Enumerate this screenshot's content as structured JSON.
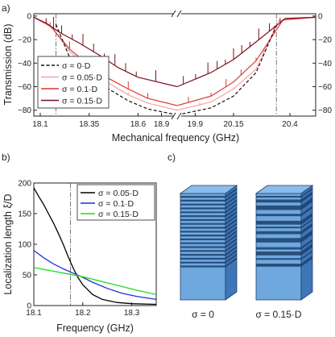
{
  "panels": {
    "a": {
      "label": "a)"
    },
    "b": {
      "label": "b)"
    },
    "c": {
      "label": "c)"
    }
  },
  "chart_data": [
    {
      "id": "a",
      "type": "line",
      "xlabel": "Mechanical frequency (GHz)",
      "ylabel": "Transmission (dB)",
      "x_ticks": [
        "18.1",
        "18.35",
        "18.6",
        "18.9",
        "19.9",
        "20.15",
        "20.4"
      ],
      "x_break": "between 18.6 and 18.9 GHz",
      "ylim": [
        -85,
        2
      ],
      "y_ticks_left": [
        "0",
        "−20",
        "−40",
        "−60",
        "−80"
      ],
      "y_ticks_right": [
        "0",
        "−20",
        "−40",
        "−60",
        "−80"
      ],
      "band_edges_dashdot": [
        18.18,
        20.34
      ],
      "legend_position": "bottom-left",
      "series": [
        {
          "name": "σ = 0·D",
          "style": "dashed",
          "color": "#111111",
          "x": [
            18.18,
            18.25,
            18.35,
            18.45,
            18.55,
            18.65,
            18.8,
            19.9,
            20.05,
            20.15,
            20.25,
            20.34
          ],
          "y": [
            -7,
            -35,
            -50,
            -62,
            -72,
            -79,
            -84,
            -84,
            -78,
            -68,
            -48,
            -8
          ]
        },
        {
          "name": "σ = 0.05·D",
          "style": "solid",
          "color": "#f4a3a3",
          "x": [
            18.16,
            18.25,
            18.35,
            18.45,
            18.55,
            18.65,
            18.8,
            19.9,
            20.05,
            20.15,
            20.25,
            20.35
          ],
          "y": [
            -10,
            -30,
            -45,
            -57,
            -67,
            -74,
            -80,
            -80,
            -73,
            -62,
            -45,
            -4
          ]
        },
        {
          "name": "σ = 0.1·D",
          "style": "solid",
          "color": "#dd3333",
          "x": [
            18.15,
            18.25,
            18.35,
            18.45,
            18.55,
            18.65,
            18.8,
            19.9,
            20.05,
            20.15,
            20.25,
            20.37
          ],
          "y": [
            -8,
            -28,
            -42,
            -53,
            -62,
            -70,
            -76,
            -76,
            -68,
            -56,
            -38,
            -3
          ]
        },
        {
          "name": "σ = 0.15·D",
          "style": "solid",
          "color": "#7a0f1e",
          "x": [
            18.13,
            18.2,
            18.3,
            18.4,
            18.5,
            18.6,
            18.8,
            19.9,
            20.05,
            20.15,
            20.25,
            20.38
          ],
          "y": [
            -6,
            -14,
            -23,
            -33,
            -44,
            -52,
            -60,
            -60,
            -48,
            -37,
            -22,
            -2
          ]
        }
      ]
    },
    {
      "id": "b",
      "type": "line",
      "xlabel": "Frequency (GHz)",
      "ylabel": "Localization length ξ/D",
      "xlim": [
        18.1,
        18.35
      ],
      "ylim": [
        0,
        200
      ],
      "x_ticks": [
        18.1,
        18.2,
        18.3
      ],
      "y_ticks": [
        0,
        50,
        100,
        150,
        200
      ],
      "vline_dashdot": 18.175,
      "legend_position": "top-right",
      "series": [
        {
          "name": "σ = 0.05·D",
          "color": "#000000",
          "x": [
            18.1,
            18.11,
            18.12,
            18.13,
            18.14,
            18.15,
            18.16,
            18.17,
            18.18,
            18.19,
            18.2,
            18.22,
            18.24,
            18.27,
            18.3,
            18.35
          ],
          "y": [
            192,
            178,
            165,
            150,
            135,
            118,
            100,
            80,
            62,
            46,
            34,
            18,
            10,
            5,
            3,
            2
          ]
        },
        {
          "name": "σ = 0.1·D",
          "color": "#1f2fd6",
          "x": [
            18.1,
            18.12,
            18.14,
            18.16,
            18.18,
            18.2,
            18.22,
            18.25,
            18.28,
            18.31,
            18.35
          ],
          "y": [
            90,
            78,
            68,
            60,
            53,
            46,
            38,
            28,
            20,
            15,
            10
          ]
        },
        {
          "name": "σ = 0.15·D",
          "color": "#1edc1e",
          "x": [
            18.1,
            18.12,
            18.14,
            18.16,
            18.18,
            18.2,
            18.22,
            18.25,
            18.28,
            18.31,
            18.35
          ],
          "y": [
            62,
            59,
            56,
            53,
            50,
            47,
            43,
            37,
            31,
            25,
            18
          ]
        }
      ]
    }
  ],
  "stacks": {
    "left": {
      "caption": "σ = 0"
    },
    "right": {
      "caption": "σ = 0.15·D"
    },
    "colors": {
      "front": "#6ea8df",
      "side": "#3f76b8",
      "top": "#8cbcea",
      "line": "#1d3f6b"
    }
  }
}
